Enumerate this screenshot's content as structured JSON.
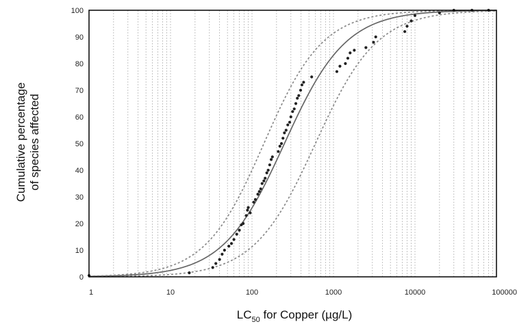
{
  "chart_data": {
    "type": "scatter",
    "title": "",
    "xlabel": {
      "main": "LC",
      "subscript": "50",
      "rest": " for Copper (µg/L)"
    },
    "ylabel": [
      "Cumulative percentage",
      "of species affected"
    ],
    "x_scale": "log",
    "xlim": [
      1,
      100000
    ],
    "ylim": [
      0,
      100
    ],
    "x_ticks": [
      1,
      10,
      100,
      1000,
      10000,
      100000
    ],
    "x_tick_labels": [
      "1",
      "10",
      "100",
      "1000",
      "10000",
      "100000"
    ],
    "y_ticks": [
      0,
      10,
      20,
      30,
      40,
      50,
      60,
      70,
      80,
      90,
      100
    ],
    "grid": {
      "x_minor_dashed": true,
      "y": false
    },
    "series": [
      {
        "style": "scatter",
        "points": [
          [
            1,
            0.5
          ],
          [
            17,
            1.5
          ],
          [
            33,
            3.5
          ],
          [
            36,
            5
          ],
          [
            40,
            6.5
          ],
          [
            43,
            8.5
          ],
          [
            46,
            10
          ],
          [
            52,
            11.5
          ],
          [
            56,
            12.5
          ],
          [
            60,
            14
          ],
          [
            65,
            16
          ],
          [
            70,
            17.5
          ],
          [
            74,
            19.5
          ],
          [
            78,
            20
          ],
          [
            85,
            23
          ],
          [
            88,
            25
          ],
          [
            90,
            26
          ],
          [
            95,
            24
          ],
          [
            105,
            28
          ],
          [
            110,
            29
          ],
          [
            118,
            31
          ],
          [
            123,
            32
          ],
          [
            128,
            33
          ],
          [
            133,
            35
          ],
          [
            140,
            36
          ],
          [
            145,
            37
          ],
          [
            152,
            39
          ],
          [
            158,
            40
          ],
          [
            165,
            42
          ],
          [
            172,
            44
          ],
          [
            178,
            45
          ],
          [
            210,
            47
          ],
          [
            220,
            49
          ],
          [
            230,
            50
          ],
          [
            240,
            52
          ],
          [
            250,
            54
          ],
          [
            262,
            55
          ],
          [
            275,
            57
          ],
          [
            290,
            58
          ],
          [
            300,
            60
          ],
          [
            315,
            62
          ],
          [
            330,
            63
          ],
          [
            345,
            65
          ],
          [
            360,
            67
          ],
          [
            375,
            68
          ],
          [
            395,
            70
          ],
          [
            410,
            72
          ],
          [
            430,
            73
          ],
          [
            540,
            75
          ],
          [
            1100,
            77
          ],
          [
            1200,
            79
          ],
          [
            1400,
            80
          ],
          [
            1500,
            82
          ],
          [
            1600,
            84
          ],
          [
            1800,
            85
          ],
          [
            2500,
            86
          ],
          [
            3100,
            88
          ],
          [
            3300,
            90
          ],
          [
            7500,
            92
          ],
          [
            8000,
            94
          ],
          [
            9000,
            96
          ],
          [
            10000,
            98
          ],
          [
            20000,
            99
          ],
          [
            30000,
            100
          ],
          [
            50000,
            100
          ],
          [
            80000,
            100
          ]
        ]
      },
      {
        "style": "solid",
        "median": 250,
        "slope": 1.15,
        "color": "#666666"
      },
      {
        "style": "dashed",
        "median": 140,
        "slope": 1.2,
        "color": "#888888"
      },
      {
        "style": "dashed",
        "median": 600,
        "slope": 1.15,
        "color": "#888888"
      }
    ]
  }
}
